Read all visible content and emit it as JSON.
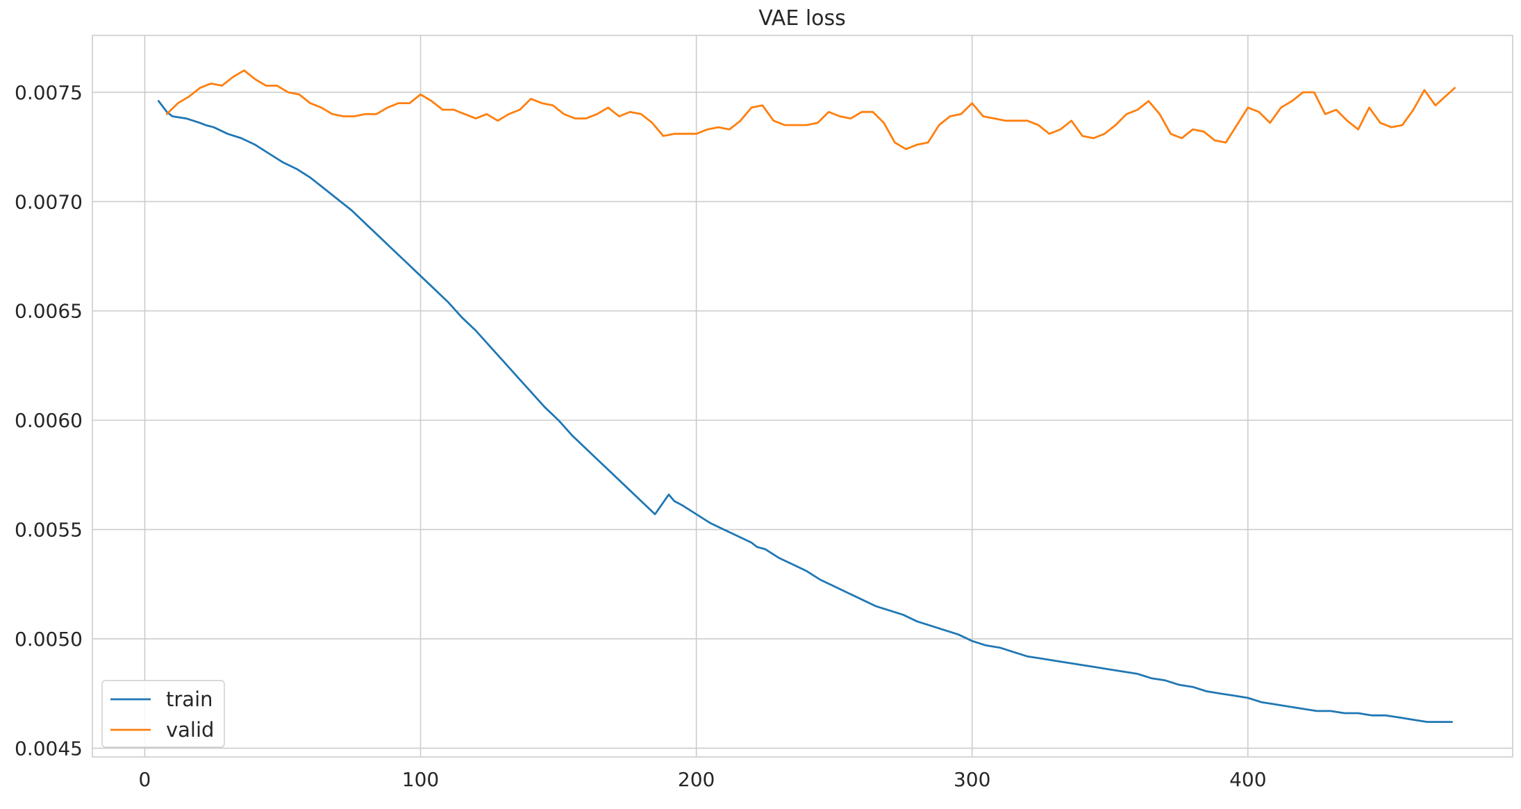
{
  "chart_data": {
    "type": "line",
    "title": "VAE loss",
    "xlabel": "",
    "ylabel": "",
    "xlim": [
      -19,
      496
    ],
    "ylim": [
      0.00446,
      0.00776
    ],
    "x_ticks": [
      0,
      100,
      200,
      300,
      400
    ],
    "x_tick_labels": [
      "0",
      "100",
      "200",
      "300",
      "400"
    ],
    "y_ticks": [
      0.0045,
      0.005,
      0.0055,
      0.006,
      0.0065,
      0.007,
      0.0075
    ],
    "y_tick_labels": [
      "0.0045",
      "0.0050",
      "0.0055",
      "0.0060",
      "0.0065",
      "0.0070",
      "0.0075"
    ],
    "grid": true,
    "legend_position": "lower-left",
    "series": [
      {
        "name": "train",
        "color": "#1f77b4",
        "x": [
          5,
          8,
          10,
          15,
          20,
          22,
          25,
          30,
          35,
          40,
          45,
          50,
          55,
          60,
          65,
          70,
          75,
          80,
          85,
          90,
          95,
          100,
          105,
          110,
          115,
          120,
          125,
          130,
          135,
          140,
          145,
          150,
          155,
          160,
          165,
          170,
          175,
          180,
          185,
          190,
          192,
          195,
          200,
          205,
          210,
          215,
          220,
          222,
          225,
          230,
          235,
          240,
          245,
          250,
          255,
          260,
          265,
          270,
          275,
          280,
          285,
          290,
          295,
          300,
          305,
          310,
          315,
          320,
          325,
          330,
          335,
          340,
          345,
          350,
          355,
          360,
          365,
          370,
          375,
          380,
          385,
          390,
          395,
          400,
          405,
          410,
          415,
          420,
          425,
          430,
          435,
          440,
          445,
          450,
          455,
          460,
          465,
          470,
          474
        ],
        "y": [
          0.00746,
          0.00741,
          0.00739,
          0.00738,
          0.00736,
          0.00735,
          0.00734,
          0.00731,
          0.00729,
          0.00726,
          0.00722,
          0.00718,
          0.00715,
          0.00711,
          0.00706,
          0.00701,
          0.00696,
          0.0069,
          0.00684,
          0.00678,
          0.00672,
          0.00666,
          0.0066,
          0.00654,
          0.00647,
          0.00641,
          0.00634,
          0.00627,
          0.0062,
          0.00613,
          0.00606,
          0.006,
          0.00593,
          0.00587,
          0.00581,
          0.00575,
          0.00569,
          0.00563,
          0.00557,
          0.00566,
          0.00563,
          0.00561,
          0.00557,
          0.00553,
          0.0055,
          0.00547,
          0.00544,
          0.00542,
          0.00541,
          0.00537,
          0.00534,
          0.00531,
          0.00527,
          0.00524,
          0.00521,
          0.00518,
          0.00515,
          0.00513,
          0.00511,
          0.00508,
          0.00506,
          0.00504,
          0.00502,
          0.00499,
          0.00497,
          0.00496,
          0.00494,
          0.00492,
          0.00491,
          0.0049,
          0.00489,
          0.00488,
          0.00487,
          0.00486,
          0.00485,
          0.00484,
          0.00482,
          0.00481,
          0.00479,
          0.00478,
          0.00476,
          0.00475,
          0.00474,
          0.00473,
          0.00471,
          0.0047,
          0.00469,
          0.00468,
          0.00467,
          0.00467,
          0.00466,
          0.00466,
          0.00465,
          0.00465,
          0.00464,
          0.00463,
          0.00462,
          0.00462,
          0.00462
        ]
      },
      {
        "name": "valid",
        "color": "#ff7f0e",
        "x": [
          8,
          12,
          16,
          20,
          24,
          28,
          32,
          36,
          40,
          44,
          48,
          52,
          56,
          60,
          64,
          68,
          72,
          76,
          80,
          84,
          88,
          92,
          96,
          100,
          104,
          108,
          112,
          116,
          120,
          124,
          128,
          132,
          136,
          140,
          144,
          148,
          152,
          156,
          160,
          164,
          168,
          172,
          176,
          180,
          184,
          188,
          192,
          196,
          200,
          204,
          208,
          212,
          216,
          220,
          224,
          228,
          232,
          236,
          240,
          244,
          248,
          252,
          256,
          260,
          264,
          268,
          272,
          276,
          280,
          284,
          288,
          292,
          296,
          300,
          304,
          308,
          312,
          316,
          320,
          324,
          328,
          332,
          336,
          340,
          344,
          348,
          352,
          356,
          360,
          364,
          368,
          372,
          376,
          380,
          384,
          388,
          392,
          396,
          400,
          404,
          408,
          412,
          416,
          420,
          424,
          428,
          432,
          436,
          440,
          444,
          448,
          452,
          456,
          460,
          464,
          468,
          475
        ],
        "y": [
          0.0074,
          0.00745,
          0.00748,
          0.00752,
          0.00754,
          0.00753,
          0.00757,
          0.0076,
          0.00756,
          0.00753,
          0.00753,
          0.0075,
          0.00749,
          0.00745,
          0.00743,
          0.0074,
          0.00739,
          0.00739,
          0.0074,
          0.0074,
          0.00743,
          0.00745,
          0.00745,
          0.00749,
          0.00746,
          0.00742,
          0.00742,
          0.0074,
          0.00738,
          0.0074,
          0.00737,
          0.0074,
          0.00742,
          0.00747,
          0.00745,
          0.00744,
          0.0074,
          0.00738,
          0.00738,
          0.0074,
          0.00743,
          0.00739,
          0.00741,
          0.0074,
          0.00736,
          0.0073,
          0.00731,
          0.00731,
          0.00731,
          0.00733,
          0.00734,
          0.00733,
          0.00737,
          0.00743,
          0.00744,
          0.00737,
          0.00735,
          0.00735,
          0.00735,
          0.00736,
          0.00741,
          0.00739,
          0.00738,
          0.00741,
          0.00741,
          0.00736,
          0.00727,
          0.00724,
          0.00726,
          0.00727,
          0.00735,
          0.00739,
          0.0074,
          0.00745,
          0.00739,
          0.00738,
          0.00737,
          0.00737,
          0.00737,
          0.00735,
          0.00731,
          0.00733,
          0.00737,
          0.0073,
          0.00729,
          0.00731,
          0.00735,
          0.0074,
          0.00742,
          0.00746,
          0.0074,
          0.00731,
          0.00729,
          0.00733,
          0.00732,
          0.00728,
          0.00727,
          0.00735,
          0.00743,
          0.00741,
          0.00736,
          0.00743,
          0.00746,
          0.0075,
          0.0075,
          0.0074,
          0.00742,
          0.00737,
          0.00733,
          0.00743,
          0.00736,
          0.00734,
          0.00735,
          0.00742,
          0.00751,
          0.00744,
          0.00752
        ]
      }
    ]
  }
}
